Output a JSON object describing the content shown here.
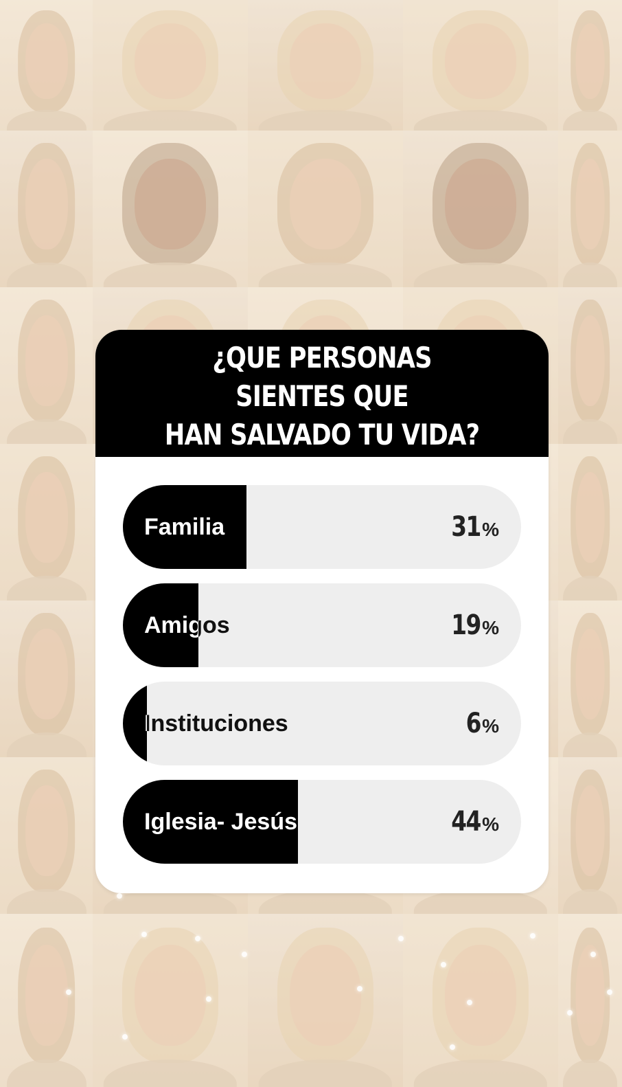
{
  "poll": {
    "question": "¿QUE PERSONAS SIENTES QUE\nHAN SALVADO TU VIDA?",
    "colors": {
      "header_bg": "#000000",
      "fill": "#000000",
      "track": "#eeeeee",
      "card_bg": "#ffffff"
    },
    "options": [
      {
        "label": "Familia",
        "percent": 31,
        "percent_text": "31",
        "sign": "%"
      },
      {
        "label": "Amigos",
        "percent": 19,
        "percent_text": "19",
        "sign": "%"
      },
      {
        "label": "Instituciones",
        "percent": 6,
        "percent_text": "6",
        "sign": "%"
      },
      {
        "label": "Iglesia- Jesús",
        "percent": 44,
        "percent_text": "44",
        "sign": "%"
      }
    ]
  },
  "background": {
    "image": "photo-mosaic-of-faces"
  }
}
